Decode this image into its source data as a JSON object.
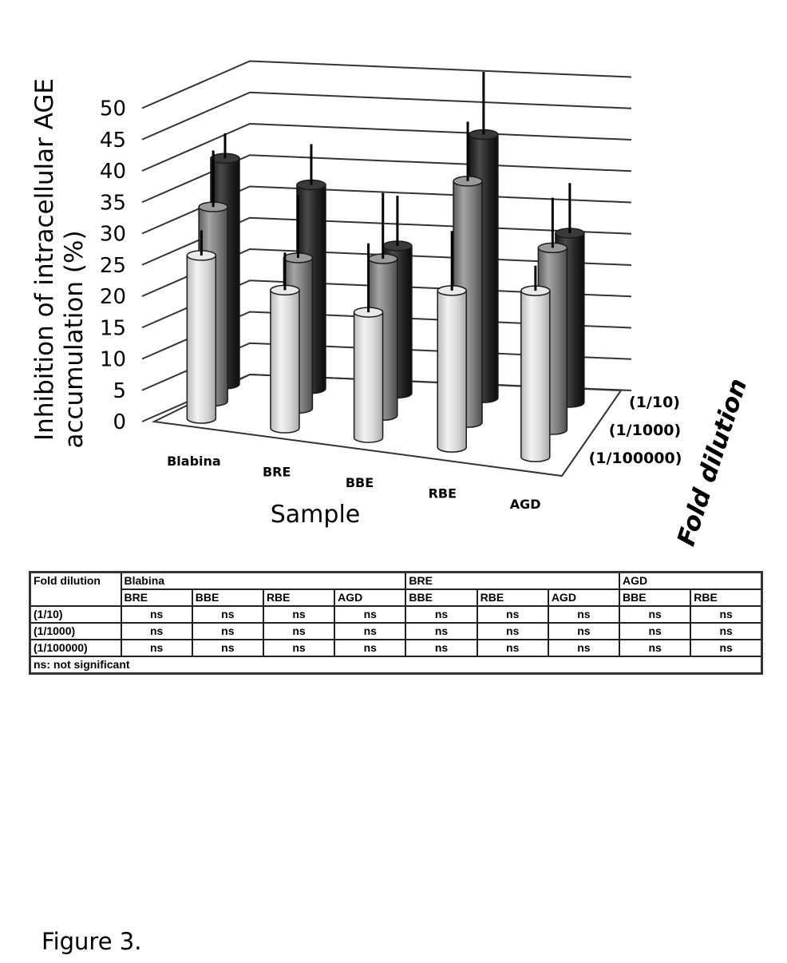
{
  "chart_data": {
    "type": "bar",
    "subtype": "3d-cylinder",
    "ylabel_line1": "Inhibition of intracellular AGE",
    "ylabel_line2": "accumulation (%)",
    "xlabel": "Sample",
    "zlabel": "Fold dilution",
    "ylim": [
      0,
      50
    ],
    "yticks": [
      0,
      5,
      10,
      15,
      20,
      25,
      30,
      35,
      40,
      45,
      50
    ],
    "categories": [
      "Blabina",
      "BRE",
      "BBE",
      "RBE",
      "AGD"
    ],
    "series": [
      {
        "name": "(1/10)",
        "color": "#2a2a2a",
        "values": [
          36,
          32.5,
          23.5,
          42,
          27
        ],
        "errors": [
          4,
          6.5,
          8,
          10,
          8
        ]
      },
      {
        "name": "(1/1000)",
        "color": "#888888",
        "values": [
          31,
          24,
          25,
          38.5,
          29
        ],
        "errors": [
          9,
          10,
          10.5,
          9.5,
          8
        ]
      },
      {
        "name": "(1/100000)",
        "color": "#d8d8d8",
        "values": [
          26,
          22,
          20,
          25,
          26.5
        ],
        "errors": [
          4,
          6,
          11,
          9.5,
          4
        ]
      }
    ]
  },
  "table": {
    "header_label": "Fold dilution",
    "groups": [
      {
        "name": "Blabina",
        "cols": [
          "BRE",
          "BBE",
          "RBE",
          "AGD"
        ]
      },
      {
        "name": "BRE",
        "cols": [
          "BBE",
          "RBE",
          "AGD"
        ]
      },
      {
        "name": "AGD",
        "cols": [
          "BBE",
          "RBE"
        ]
      }
    ],
    "rows": [
      {
        "label": "(1/10)",
        "cells": [
          "ns",
          "ns",
          "ns",
          "ns",
          "ns",
          "ns",
          "ns",
          "ns",
          "ns"
        ]
      },
      {
        "label": "(1/1000)",
        "cells": [
          "ns",
          "ns",
          "ns",
          "ns",
          "ns",
          "ns",
          "ns",
          "ns",
          "ns"
        ]
      },
      {
        "label": "(1/100000)",
        "cells": [
          "ns",
          "ns",
          "ns",
          "ns",
          "ns",
          "ns",
          "ns",
          "ns",
          "ns"
        ]
      }
    ],
    "footnote": "ns: not significant"
  },
  "caption": "Figure 3."
}
